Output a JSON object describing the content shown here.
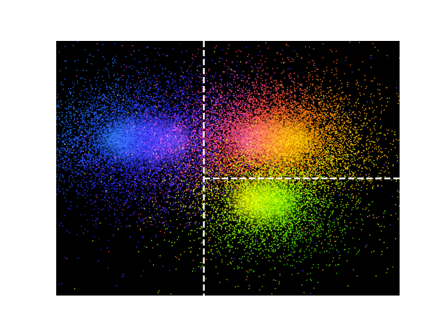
{
  "chart_data": {
    "type": "scatter",
    "title": "",
    "xlabel": "",
    "ylabel": "",
    "axes_visible": false,
    "background": "#000000",
    "xlim": [
      0,
      100
    ],
    "ylim": [
      0,
      100
    ],
    "threshold_lines": [
      {
        "orientation": "vertical",
        "x": 43,
        "y_range": [
          0,
          100
        ],
        "style": "dashed",
        "color": "#ffffff"
      },
      {
        "orientation": "horizontal",
        "y": 46,
        "x_range": [
          43,
          100
        ],
        "style": "dashed",
        "color": "#ffffff"
      }
    ],
    "series": [
      {
        "cluster": "left",
        "color": "#2a2aff",
        "center": [
          26,
          61
        ],
        "spread": [
          14,
          11
        ],
        "count": 9000,
        "gradient": [
          "#1a7cff",
          "#2a2aff",
          "#7a3cff"
        ]
      },
      {
        "cluster": "upper-right",
        "color": "#ff7a1a",
        "center": [
          63,
          61
        ],
        "spread": [
          12,
          10
        ],
        "count": 11000,
        "gradient": [
          "#ff3cc8",
          "#ff4a3a",
          "#ff8a00",
          "#ffd400"
        ]
      },
      {
        "cluster": "lower-right",
        "color": "#7cff00",
        "center": [
          61,
          37
        ],
        "spread": [
          10,
          10
        ],
        "count": 4500,
        "gradient": [
          "#ffee00",
          "#9cff00",
          "#3cd800"
        ]
      }
    ]
  }
}
